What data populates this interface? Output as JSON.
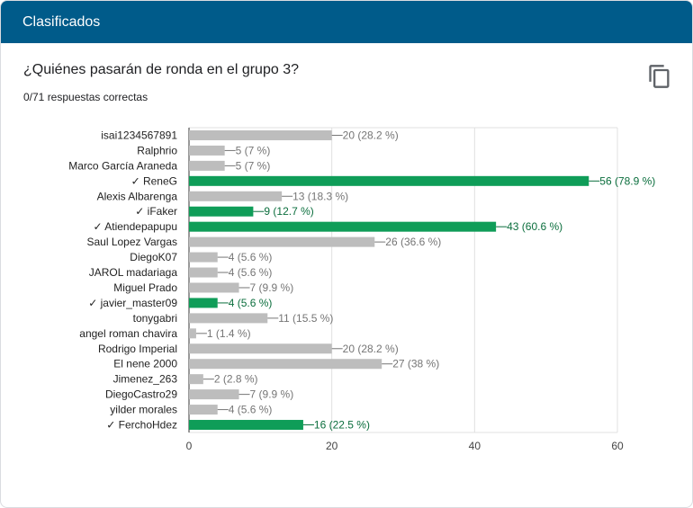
{
  "header": {
    "title": "Clasificados"
  },
  "question": {
    "title": "¿Quiénes pasarán de ronda en el grupo 3?",
    "subtitle": "0/71 respuestas correctas"
  },
  "icons": {
    "copy": "copy-icon"
  },
  "colors": {
    "header_bg": "#005b8a",
    "correct": "#0f9d58",
    "incorrect": "#bdbdbd",
    "correct_text": "#0b6e3d",
    "incorrect_text": "#757575",
    "grid": "#e0e0e0"
  },
  "chart_data": {
    "type": "bar",
    "orientation": "horizontal",
    "xlim": [
      0,
      60
    ],
    "xticks": [
      0,
      20,
      40,
      60
    ],
    "grid": true,
    "categories": [
      "isai1234567891",
      "Ralphrio",
      "Marco García Araneda",
      "✓ ReneG",
      "Alexis Albarenga",
      "✓ iFaker",
      "✓ Atiendepapupu",
      "Saul Lopez Vargas",
      "DiegoK07",
      "JAROL madariaga",
      "Miguel Prado",
      "✓ javier_master09",
      "tonygabri",
      "angel roman chavira",
      "Rodrigo Imperial",
      "El nene 2000",
      "Jimenez_263",
      "DiegoCastro29",
      "yilder morales",
      "✓ FerchoHdez"
    ],
    "values": [
      20,
      5,
      5,
      56,
      13,
      9,
      43,
      26,
      4,
      4,
      7,
      4,
      11,
      1,
      20,
      27,
      2,
      7,
      4,
      16
    ],
    "value_labels": [
      "20 (28.2 %)",
      "5 (7 %)",
      "5 (7 %)",
      "56 (78.9 %)",
      "13 (18.3 %)",
      "9 (12.7 %)",
      "43 (60.6 %)",
      "26 (36.6 %)",
      "4 (5.6 %)",
      "4 (5.6 %)",
      "7 (9.9 %)",
      "4 (5.6 %)",
      "11 (15.5 %)",
      "1 (1.4 %)",
      "20 (28.2 %)",
      "27 (38 %)",
      "2 (2.8 %)",
      "7 (9.9 %)",
      "4 (5.6 %)",
      "16 (22.5 %)"
    ],
    "correct": [
      false,
      false,
      false,
      true,
      false,
      true,
      true,
      false,
      false,
      false,
      false,
      true,
      false,
      false,
      false,
      false,
      false,
      false,
      false,
      true
    ]
  }
}
